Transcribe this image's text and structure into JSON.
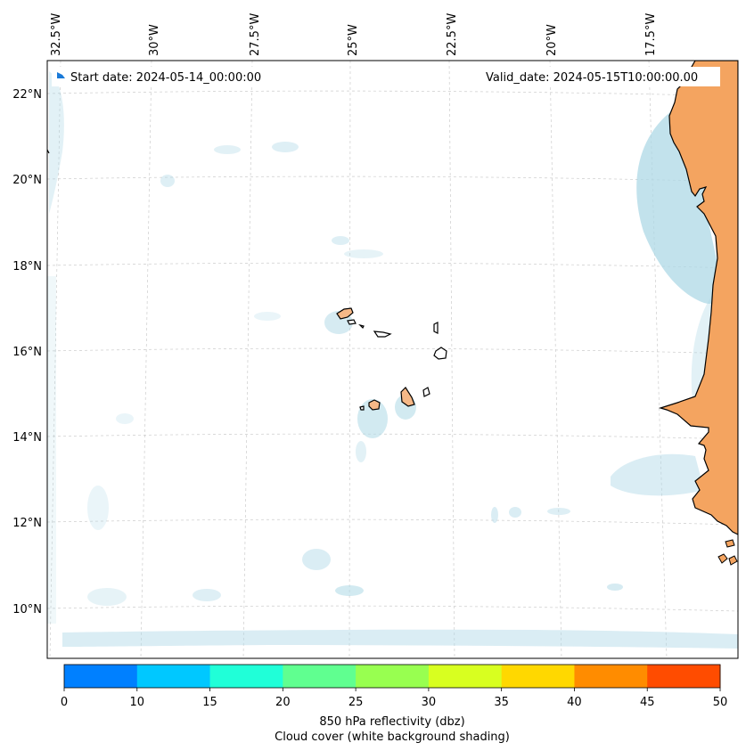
{
  "map": {
    "start_label": "Start date: 2024-05-14_00:00:00",
    "valid_label": "Valid_date: 2024-05-15T10:00:00.00",
    "lon_labels": [
      "32.5°W",
      "30°W",
      "27.5°W",
      "25°W",
      "22.5°W",
      "20°W",
      "17.5°W"
    ],
    "lat_labels": [
      "22°N",
      "20°N",
      "18°N",
      "16°N",
      "14°N",
      "12°N",
      "10°N"
    ],
    "colors": {
      "land_africa": "#f4a460",
      "land_islands": "#f5b887",
      "cloud": "#add8e6",
      "gridline": "#cccccc"
    }
  },
  "colorbar": {
    "ticks": [
      "0",
      "10",
      "15",
      "20",
      "25",
      "30",
      "35",
      "40",
      "45",
      "50"
    ],
    "colors": [
      "#0080ff",
      "#00c8ff",
      "#20ffd8",
      "#60ff90",
      "#98ff50",
      "#d8ff20",
      "#ffd800",
      "#ff8c00",
      "#ff4c00"
    ],
    "label_line1": "850 hPa reflectivity (dbz)",
    "label_line2": "Cloud cover (white background shading)"
  }
}
